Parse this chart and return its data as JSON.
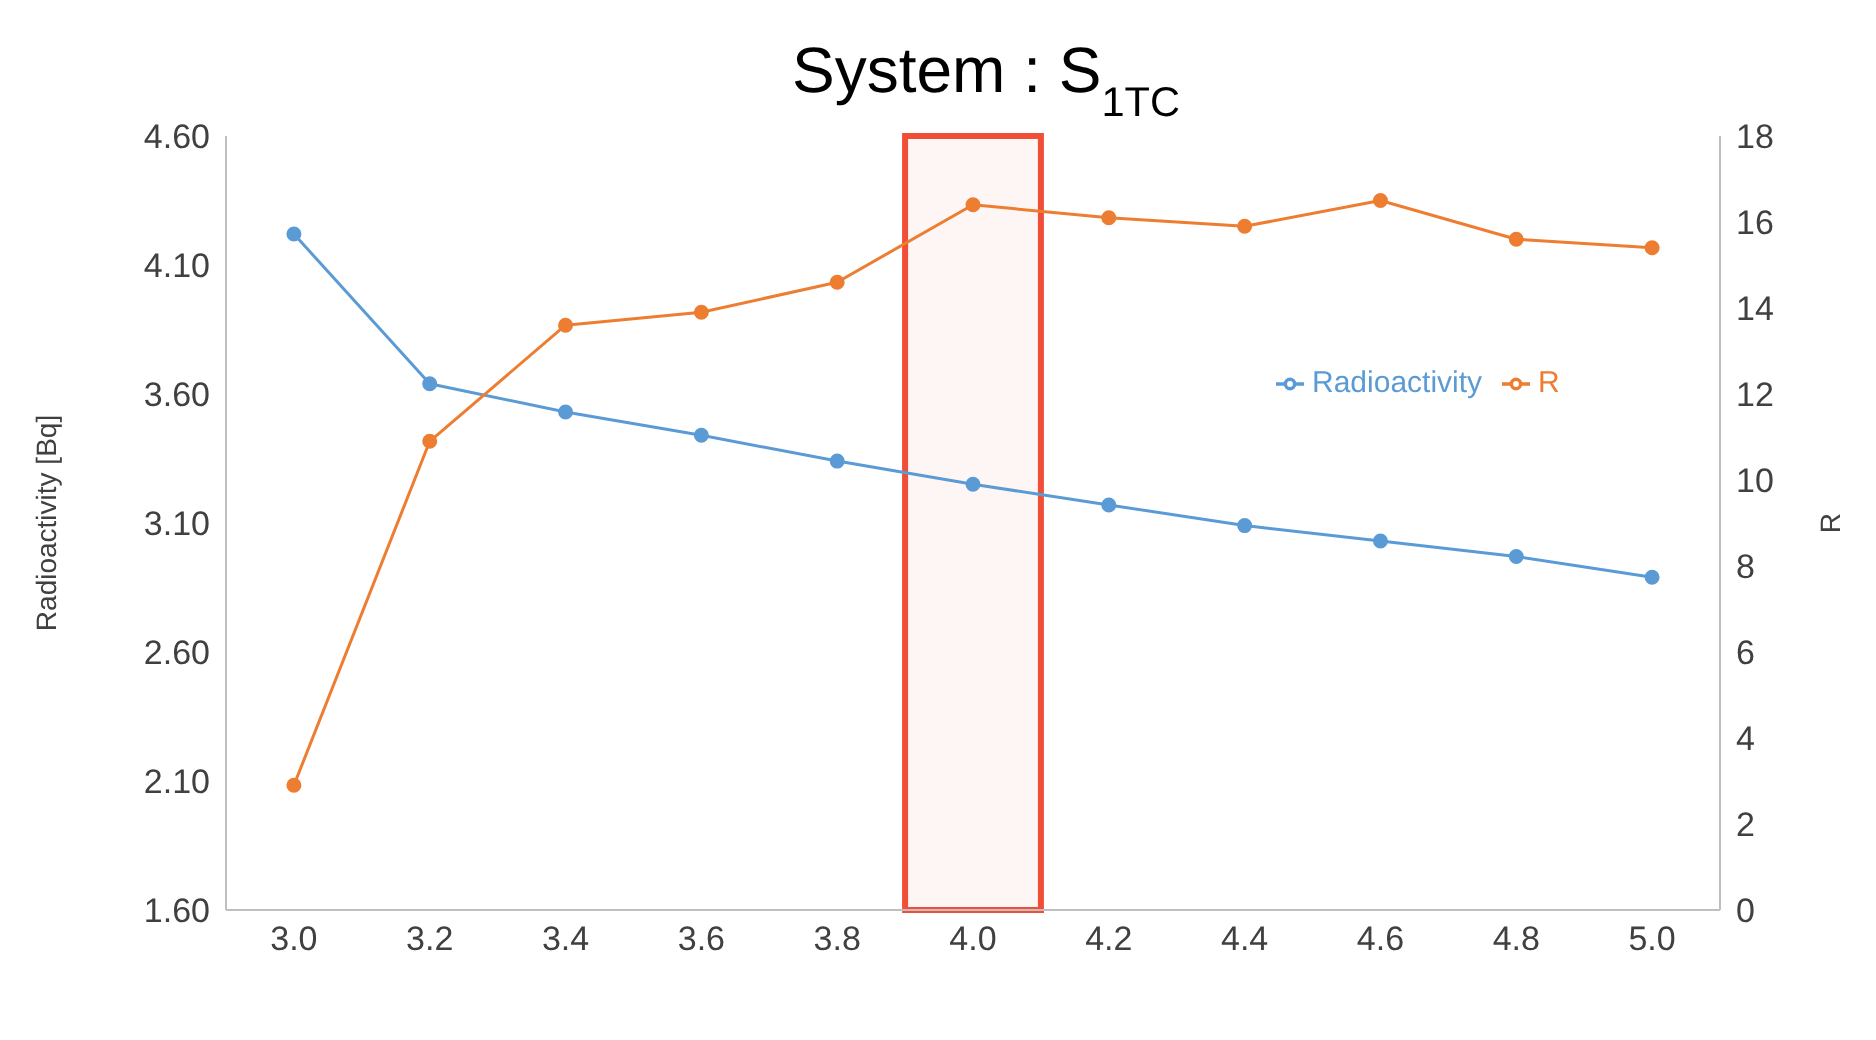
{
  "chart_data": {
    "type": "line",
    "title": "System : S$_{1TC}$",
    "ylabel": "Radioactivity [Bq]",
    "y2label": "R",
    "x": [
      3.0,
      3.2,
      3.4,
      3.6,
      3.8,
      4.0,
      4.2,
      4.4,
      4.6,
      4.8,
      5.0
    ],
    "series": [
      {
        "name": "Radioactivity",
        "color": "#5b9bd5",
        "values": [
          4.22,
          3.64,
          3.53,
          3.44,
          3.34,
          3.25,
          3.17,
          3.09,
          3.03,
          2.97,
          2.89
        ]
      },
      {
        "name": "R",
        "color": "#ed7d31",
        "axis": "y2",
        "values": [
          2.9,
          10.9,
          13.6,
          13.9,
          14.6,
          16.4,
          16.1,
          15.9,
          16.5,
          15.6,
          15.4
        ]
      }
    ],
    "xlim": [
      2.9,
      5.1
    ],
    "xticks": [
      {
        "value": 3,
        "label": "3.0"
      },
      {
        "value": 3.2,
        "label": "3.2"
      },
      {
        "value": 3.4,
        "label": "3.4"
      },
      {
        "value": 3.6,
        "label": "3.6"
      },
      {
        "value": 3.8,
        "label": "3.8"
      },
      {
        "value": 4,
        "label": "4.0"
      },
      {
        "value": 4.2,
        "label": "4.2"
      },
      {
        "value": 4.4,
        "label": "4.4"
      },
      {
        "value": 4.6,
        "label": "4.6"
      },
      {
        "value": 4.8,
        "label": "4.8"
      },
      {
        "value": 5,
        "label": "5.0"
      }
    ],
    "ylim": [
      1.6,
      4.6
    ],
    "yticks": [
      {
        "value": 1.6,
        "label": "1.60"
      },
      {
        "value": 2.1,
        "label": "2.10"
      },
      {
        "value": 2.6,
        "label": "2.60"
      },
      {
        "value": 3.1,
        "label": "3.10"
      },
      {
        "value": 3.6,
        "label": "3.60"
      },
      {
        "value": 4.1,
        "label": "4.10"
      },
      {
        "value": 4.6,
        "label": "4.60"
      }
    ],
    "y2lim": [
      0,
      18
    ],
    "y2ticks": [
      0,
      2,
      4,
      6,
      8,
      10,
      12,
      14,
      16,
      18
    ],
    "bands": [
      {
        "axis": "x",
        "from": 3.9,
        "to": 4.1,
        "color": "#f04e37"
      }
    ],
    "grid": false,
    "legend": "right",
    "marker": "circle",
    "line_style": "solid"
  }
}
